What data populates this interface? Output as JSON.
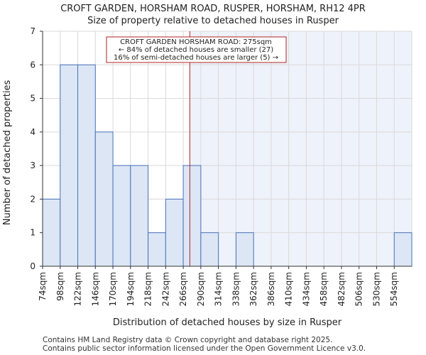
{
  "chart_data": {
    "type": "bar",
    "title": "CROFT GARDEN, HORSHAM ROAD, RUSPER, HORSHAM, RH12 4PR",
    "subtitle": "Size of property relative to detached houses in Rusper",
    "xlabel": "Distribution of detached houses by size in Rusper",
    "ylabel": "Number of detached properties",
    "categories": [
      "74sqm",
      "98sqm",
      "122sqm",
      "146sqm",
      "170sqm",
      "194sqm",
      "218sqm",
      "242sqm",
      "266sqm",
      "290sqm",
      "314sqm",
      "338sqm",
      "362sqm",
      "386sqm",
      "410sqm",
      "434sqm",
      "458sqm",
      "482sqm",
      "506sqm",
      "530sqm",
      "554sqm"
    ],
    "values": [
      2,
      6,
      6,
      4,
      3,
      3,
      1,
      2,
      3,
      1,
      0,
      1,
      0,
      0,
      0,
      0,
      0,
      0,
      0,
      0,
      1
    ],
    "ylim": [
      0,
      7
    ],
    "yticks": [
      0,
      1,
      2,
      3,
      4,
      5,
      6,
      7
    ],
    "grid": true,
    "bin_width_sqm": 24,
    "x_start_sqm": 74,
    "marker": {
      "value_sqm": 275,
      "lines": [
        "CROFT GARDEN HORSHAM ROAD: 275sqm",
        "← 84% of detached houses are smaller (27)",
        "16% of semi-detached houses are larger (5) →"
      ]
    },
    "colors": {
      "bar_fill": "#dce6f5",
      "bar_stroke": "#4a72b8",
      "marker": "#b22222",
      "highlight_bg": "#eef2fb",
      "grid": "#d9d9d9"
    }
  },
  "footer": {
    "line1": "Contains HM Land Registry data © Crown copyright and database right 2025.",
    "line2": "Contains public sector information licensed under the Open Government Licence v3.0."
  }
}
